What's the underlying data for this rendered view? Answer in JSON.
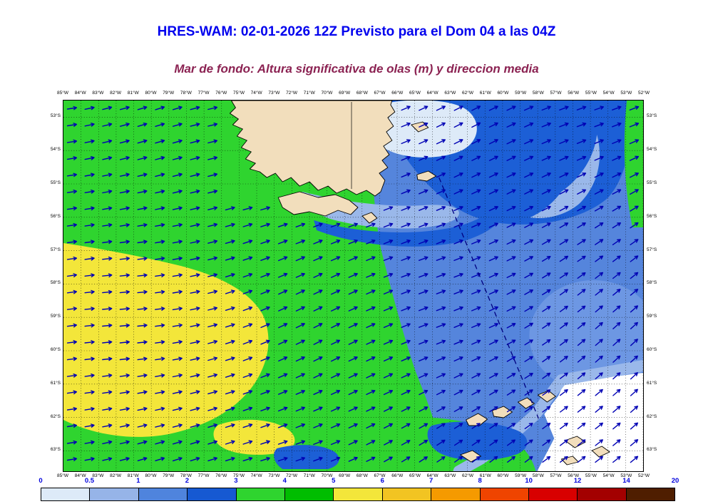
{
  "header": {
    "title": "HRES-WAM: 02-01-2026 12Z Previsto para el Dom 04 a las 04Z",
    "subtitle": "Mar de fondo: Altura significativa de olas (m) y direccion media"
  },
  "map": {
    "lon_labels": [
      "85°W",
      "84°W",
      "83°W",
      "82°W",
      "81°W",
      "80°W",
      "79°W",
      "78°W",
      "77°W",
      "76°W",
      "75°W",
      "74°W",
      "73°W",
      "72°W",
      "71°W",
      "70°W",
      "69°W",
      "68°W",
      "67°W",
      "66°W",
      "65°W",
      "64°W",
      "63°W",
      "62°W",
      "61°W",
      "60°W",
      "59°W",
      "58°W",
      "57°W",
      "56°W",
      "55°W",
      "54°W",
      "53°W",
      "52°W"
    ],
    "lat_labels": [
      "53°S",
      "54°S",
      "55°S",
      "56°S",
      "57°S",
      "58°S",
      "59°S",
      "60°S",
      "61°S",
      "62°S",
      "63°S"
    ],
    "colors": {
      "green": "#2fd42f",
      "yellow": "#f3e63a",
      "medium_blue": "#5585dc",
      "medium_blue2": "#6d97e3",
      "strong_blue": "#1c5fd6",
      "light_blue": "#9ab8ea",
      "pale_blue": "#ddeaf8",
      "land": "#f2debc",
      "arrow": "#0000b4",
      "transect": "#000080"
    }
  },
  "colorbar": {
    "values": [
      "0",
      "0.5",
      "1",
      "2",
      "3",
      "4",
      "5",
      "6",
      "7",
      "8",
      "10",
      "12",
      "14",
      "20"
    ],
    "segments": [
      "#ddeaf8",
      "#96b4e8",
      "#4f84dd",
      "#1659d2",
      "#2fd42f",
      "#00bd00",
      "#f3e63a",
      "#f2c422",
      "#f59a00",
      "#ef4400",
      "#d80000",
      "#a30000",
      "#4f1e00"
    ]
  }
}
